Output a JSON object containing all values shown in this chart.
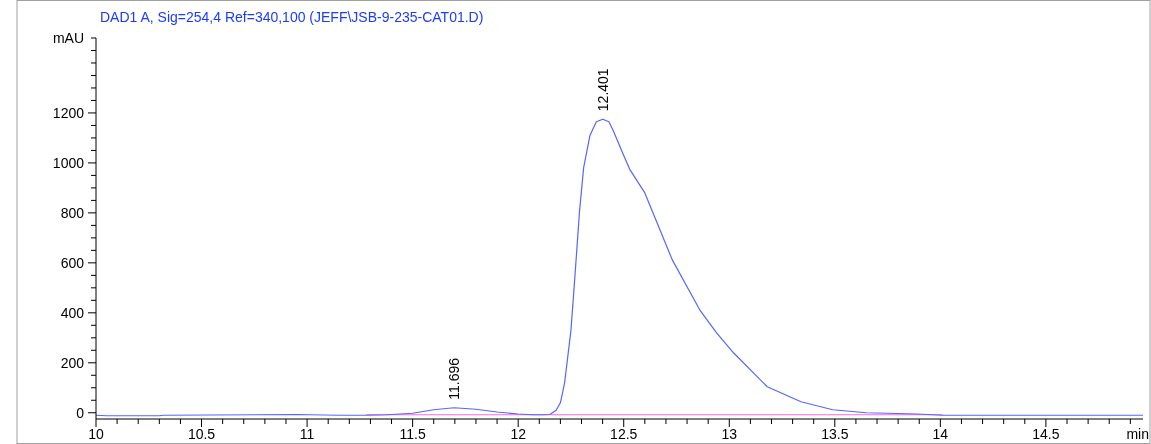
{
  "chart_data": {
    "type": "line",
    "title": "DAD1 A, Sig=254,4 Ref=340,100 (JEFF\\JSB-9-235-CAT01.D)",
    "xlabel": "min",
    "ylabel": "mAU",
    "xlim": [
      10,
      14.96
    ],
    "ylim": [
      -25,
      1500
    ],
    "xticks": [
      10,
      {
        "value": 10.1,
        "label": null
      },
      {
        "value": 10.2,
        "label": null
      },
      {
        "value": 10.3,
        "label": null
      },
      {
        "value": 10.4,
        "label": null
      },
      10.5,
      {
        "value": 10.6,
        "label": null
      },
      {
        "value": 10.7,
        "label": null
      },
      {
        "value": 10.8,
        "label": null
      },
      {
        "value": 10.9,
        "label": null
      },
      11,
      {
        "value": 11.1,
        "label": null
      },
      {
        "value": 11.2,
        "label": null
      },
      {
        "value": 11.3,
        "label": null
      },
      {
        "value": 11.4,
        "label": null
      },
      11.5,
      {
        "value": 11.6,
        "label": null
      },
      {
        "value": 11.7,
        "label": null
      },
      {
        "value": 11.8,
        "label": null
      },
      {
        "value": 11.9,
        "label": null
      },
      12,
      {
        "value": 12.1,
        "label": null
      },
      {
        "value": 12.2,
        "label": null
      },
      {
        "value": 12.3,
        "label": null
      },
      {
        "value": 12.4,
        "label": null
      },
      12.5,
      {
        "value": 12.6,
        "label": null
      },
      {
        "value": 12.7,
        "label": null
      },
      {
        "value": 12.8,
        "label": null
      },
      {
        "value": 12.9,
        "label": null
      },
      13,
      {
        "value": 13.1,
        "label": null
      },
      {
        "value": 13.2,
        "label": null
      },
      {
        "value": 13.3,
        "label": null
      },
      {
        "value": 13.4,
        "label": null
      },
      13.5,
      {
        "value": 13.6,
        "label": null
      },
      {
        "value": 13.7,
        "label": null
      },
      {
        "value": 13.8,
        "label": null
      },
      {
        "value": 13.9,
        "label": null
      },
      14,
      {
        "value": 14.1,
        "label": null
      },
      {
        "value": 14.2,
        "label": null
      },
      {
        "value": 14.3,
        "label": null
      },
      {
        "value": 14.4,
        "label": null
      },
      14.5,
      {
        "value": 14.6,
        "label": null
      },
      {
        "value": 14.7,
        "label": null
      },
      {
        "value": 14.8,
        "label": null
      },
      {
        "value": 14.9,
        "label": null
      }
    ],
    "yticks": [
      0,
      {
        "value": 50,
        "label": null
      },
      {
        "value": 100,
        "label": null
      },
      {
        "value": 150,
        "label": null
      },
      200,
      {
        "value": 250,
        "label": null
      },
      {
        "value": 300,
        "label": null
      },
      {
        "value": 350,
        "label": null
      },
      400,
      {
        "value": 450,
        "label": null
      },
      {
        "value": 500,
        "label": null
      },
      {
        "value": 550,
        "label": null
      },
      600,
      {
        "value": 650,
        "label": null
      },
      {
        "value": 700,
        "label": null
      },
      {
        "value": 750,
        "label": null
      },
      800,
      {
        "value": 850,
        "label": null
      },
      {
        "value": 900,
        "label": null
      },
      {
        "value": 950,
        "label": null
      },
      1000,
      {
        "value": 1050,
        "label": null
      },
      {
        "value": 1100,
        "label": null
      },
      {
        "value": 1150,
        "label": null
      },
      1200,
      {
        "value": 1250,
        "label": null
      },
      {
        "value": 1300,
        "label": null
      },
      {
        "value": 1350,
        "label": null
      },
      {
        "value": 1400,
        "label": null
      },
      {
        "value": 1450,
        "label": null
      },
      {
        "value": 1500,
        "label": null
      }
    ],
    "series": [
      {
        "color": "#ff66dd",
        "x": [
          11.28,
          14.01
        ],
        "values": [
          -8,
          -8
        ]
      },
      {
        "color": "#5566ff",
        "x": [
          10,
          10.05,
          10.3,
          10.32,
          10.95,
          11.15,
          11.28,
          11.38,
          11.5,
          11.6,
          11.696,
          11.8,
          11.9,
          12.0,
          12.07,
          12.12,
          12.15,
          12.18,
          12.2,
          12.22,
          12.25,
          12.27,
          12.29,
          12.31,
          12.34,
          12.37,
          12.401,
          12.43,
          12.45,
          12.5,
          12.53,
          12.6,
          12.73,
          12.86,
          12.94,
          13.02,
          13.18,
          13.34,
          13.49,
          13.65,
          13.89,
          14.01,
          14.5,
          14.96
        ],
        "values": [
          -10,
          -12,
          -12,
          -10,
          -7,
          -10,
          -10,
          -8,
          -2,
          12,
          20,
          14,
          3,
          -5,
          -8,
          -8,
          -7,
          10,
          40,
          120,
          330,
          560,
          800,
          980,
          1110,
          1165,
          1175,
          1165,
          1130,
          1030,
          972,
          880,
          612,
          412,
          320,
          240,
          104,
          44,
          12,
          0,
          -5,
          -10,
          -10,
          -10
        ]
      }
    ],
    "annotations": [
      {
        "text": "12.401",
        "x": 12.401,
        "y": 1175
      },
      {
        "text": "11.696",
        "x": 11.696,
        "y": 20
      }
    ]
  }
}
